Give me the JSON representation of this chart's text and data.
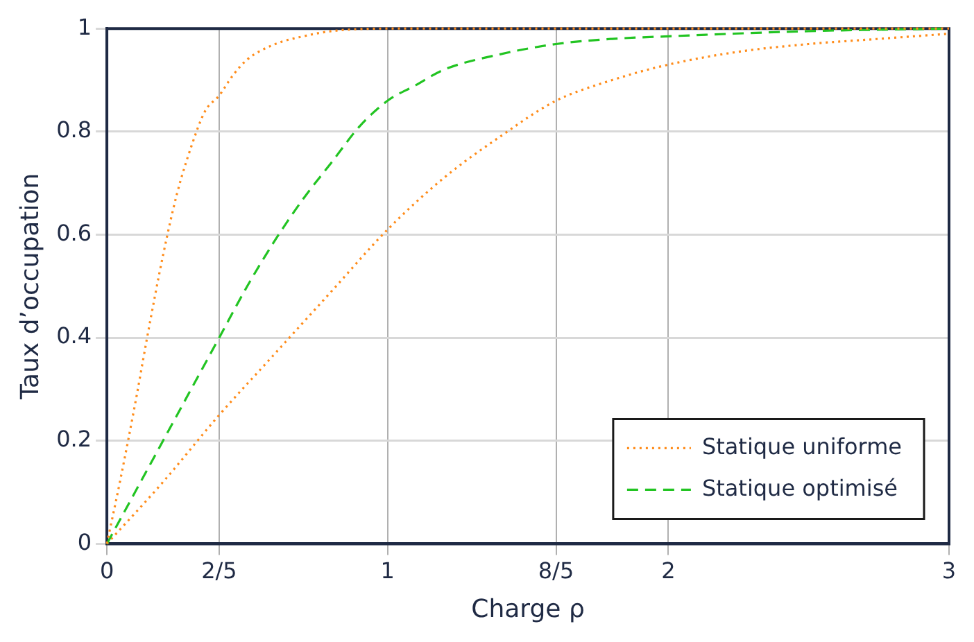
{
  "chart_data": {
    "type": "line",
    "xlabel": "Charge ρ",
    "ylabel": "Taux d’occupation",
    "xlim": [
      0,
      3
    ],
    "ylim": [
      0,
      1
    ],
    "xticks": [
      0,
      {
        "value": 0.4,
        "label": "2/5"
      },
      1,
      {
        "value": 1.6,
        "label": "8/5"
      },
      2,
      3
    ],
    "yticks": [
      0,
      0.2,
      0.4,
      0.6,
      0.8,
      1
    ],
    "grid": true,
    "legend": "bottom right",
    "marker": "none",
    "series": [
      {
        "name": "Statique uniforme",
        "color": "#ff8c1a",
        "line_style": "dotted",
        "x": [
          0,
          0.05,
          0.1,
          0.15,
          0.2,
          0.25,
          0.3,
          0.35,
          0.4,
          0.45,
          0.5,
          0.6,
          0.7,
          0.8,
          1,
          1.5,
          2,
          3
        ],
        "values": [
          0,
          0.13,
          0.27,
          0.42,
          0.56,
          0.68,
          0.77,
          0.84,
          0.87,
          0.91,
          0.94,
          0.97,
          0.985,
          0.995,
          1,
          1,
          1,
          1
        ]
      },
      {
        "name": "Statique optimisé",
        "color": "#22c422",
        "line_style": "dashed",
        "x": [
          0,
          0.2,
          0.4,
          0.5,
          0.6,
          0.7,
          0.8,
          0.9,
          1,
          1.1,
          1.2,
          1.4,
          1.6,
          1.8,
          2,
          2.5,
          3
        ],
        "values": [
          0,
          0.2,
          0.4,
          0.5,
          0.59,
          0.67,
          0.74,
          0.81,
          0.86,
          0.89,
          0.92,
          0.95,
          0.97,
          0.98,
          0.985,
          0.995,
          1
        ]
      },
      {
        "color": "#ff8c1a",
        "line_style": "dotted",
        "x": [
          0,
          0.2,
          0.4,
          0.6,
          0.8,
          1,
          1.2,
          1.4,
          1.6,
          1.8,
          2,
          2.25,
          2.5,
          2.75,
          3
        ],
        "values": [
          0,
          0.12,
          0.25,
          0.37,
          0.49,
          0.61,
          0.71,
          0.79,
          0.86,
          0.9,
          0.93,
          0.955,
          0.97,
          0.98,
          0.99
        ]
      }
    ]
  }
}
